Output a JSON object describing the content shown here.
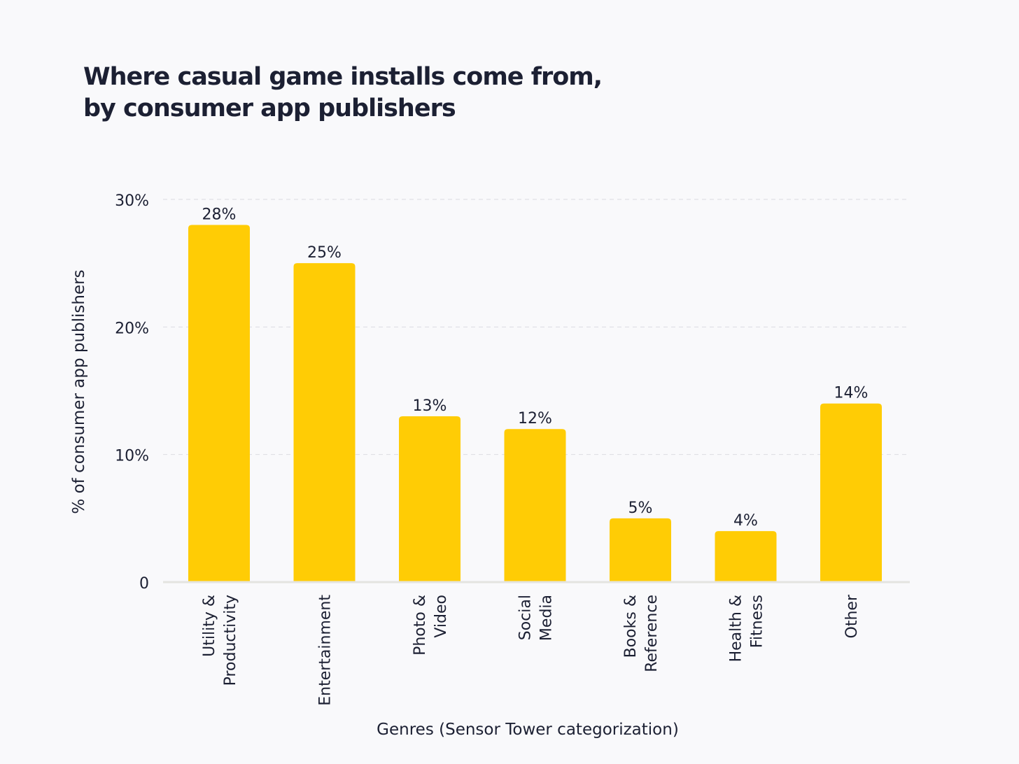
{
  "chart_data": {
    "type": "bar",
    "title": [
      "Where casual game installs come from,",
      "by consumer app publishers"
    ],
    "xlabel": "Genres (Sensor Tower categorization)",
    "ylabel": "% of consumer app publishers",
    "categories": [
      [
        "Utility &",
        "Productivity"
      ],
      [
        "Entertainment"
      ],
      [
        "Photo &",
        "Video"
      ],
      [
        "Social",
        "Media"
      ],
      [
        "Books &",
        "Reference"
      ],
      [
        "Health &",
        "Fitness"
      ],
      [
        "Other"
      ]
    ],
    "values": [
      28,
      25,
      13,
      12,
      5,
      4,
      14
    ],
    "data_labels": [
      "28%",
      "25%",
      "13%",
      "12%",
      "5%",
      "4%",
      "14%"
    ],
    "ylim": [
      0,
      30
    ],
    "yticks": [
      0,
      10,
      20,
      30
    ],
    "ytick_labels": [
      "0",
      "10%",
      "20%",
      "30%"
    ],
    "grid": true,
    "bar_color": "#ffcc05",
    "background": "#f9f9fb"
  }
}
